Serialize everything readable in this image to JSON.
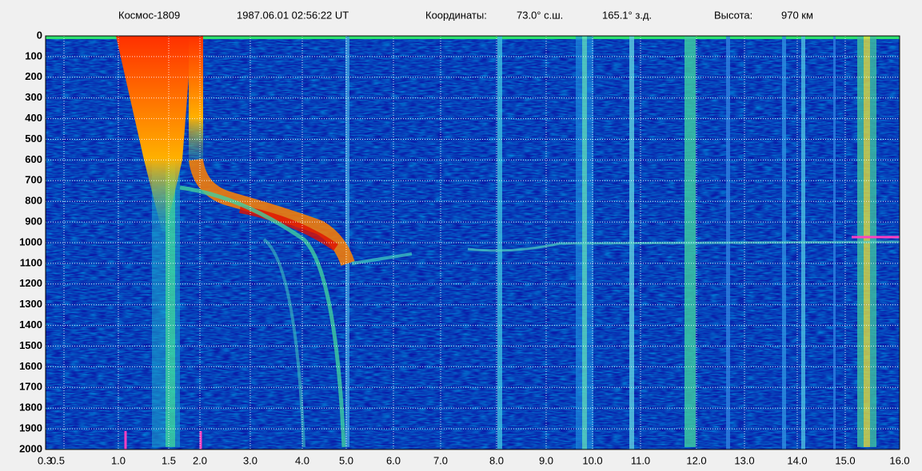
{
  "header": {
    "satellite": "Космос-1809",
    "datetime": "1987.06.01 02:56:22 UT",
    "coords_label": "Координаты:",
    "latitude": "73.0° с.ш.",
    "longitude": "165.1° з.д.",
    "altitude_label": "Высота:",
    "altitude": "970 км"
  },
  "chart_data": {
    "type": "heatmap",
    "ylim": [
      0,
      2000
    ],
    "yticks": [
      0,
      100,
      200,
      300,
      400,
      500,
      600,
      700,
      800,
      900,
      1000,
      1100,
      1200,
      1300,
      1400,
      1500,
      1600,
      1700,
      1800,
      1900,
      2000
    ],
    "xlim": [
      0.3,
      16
    ],
    "xticks": [
      0.3,
      0.5,
      {
        "value": 1,
        "label": "1.0"
      },
      1.5,
      {
        "value": 2,
        "label": "2.0"
      },
      {
        "value": 3,
        "label": "3.0"
      },
      {
        "value": 4,
        "label": "4.0"
      },
      {
        "value": 5,
        "label": "5.0"
      },
      {
        "value": 6,
        "label": "6.0"
      },
      {
        "value": 7,
        "label": "7.0"
      },
      {
        "value": 8,
        "label": "8.0"
      },
      {
        "value": 9,
        "label": "9.0"
      },
      {
        "value": 10,
        "label": "10.0"
      },
      {
        "value": 11,
        "label": "11.0"
      },
      {
        "value": 12,
        "label": "12.0"
      },
      {
        "value": 13,
        "label": "13.0"
      },
      {
        "value": 14,
        "label": "14.0"
      },
      {
        "value": 15,
        "label": "15.0"
      },
      {
        "value": 16,
        "label": "16.0"
      }
    ],
    "grid": true
  }
}
